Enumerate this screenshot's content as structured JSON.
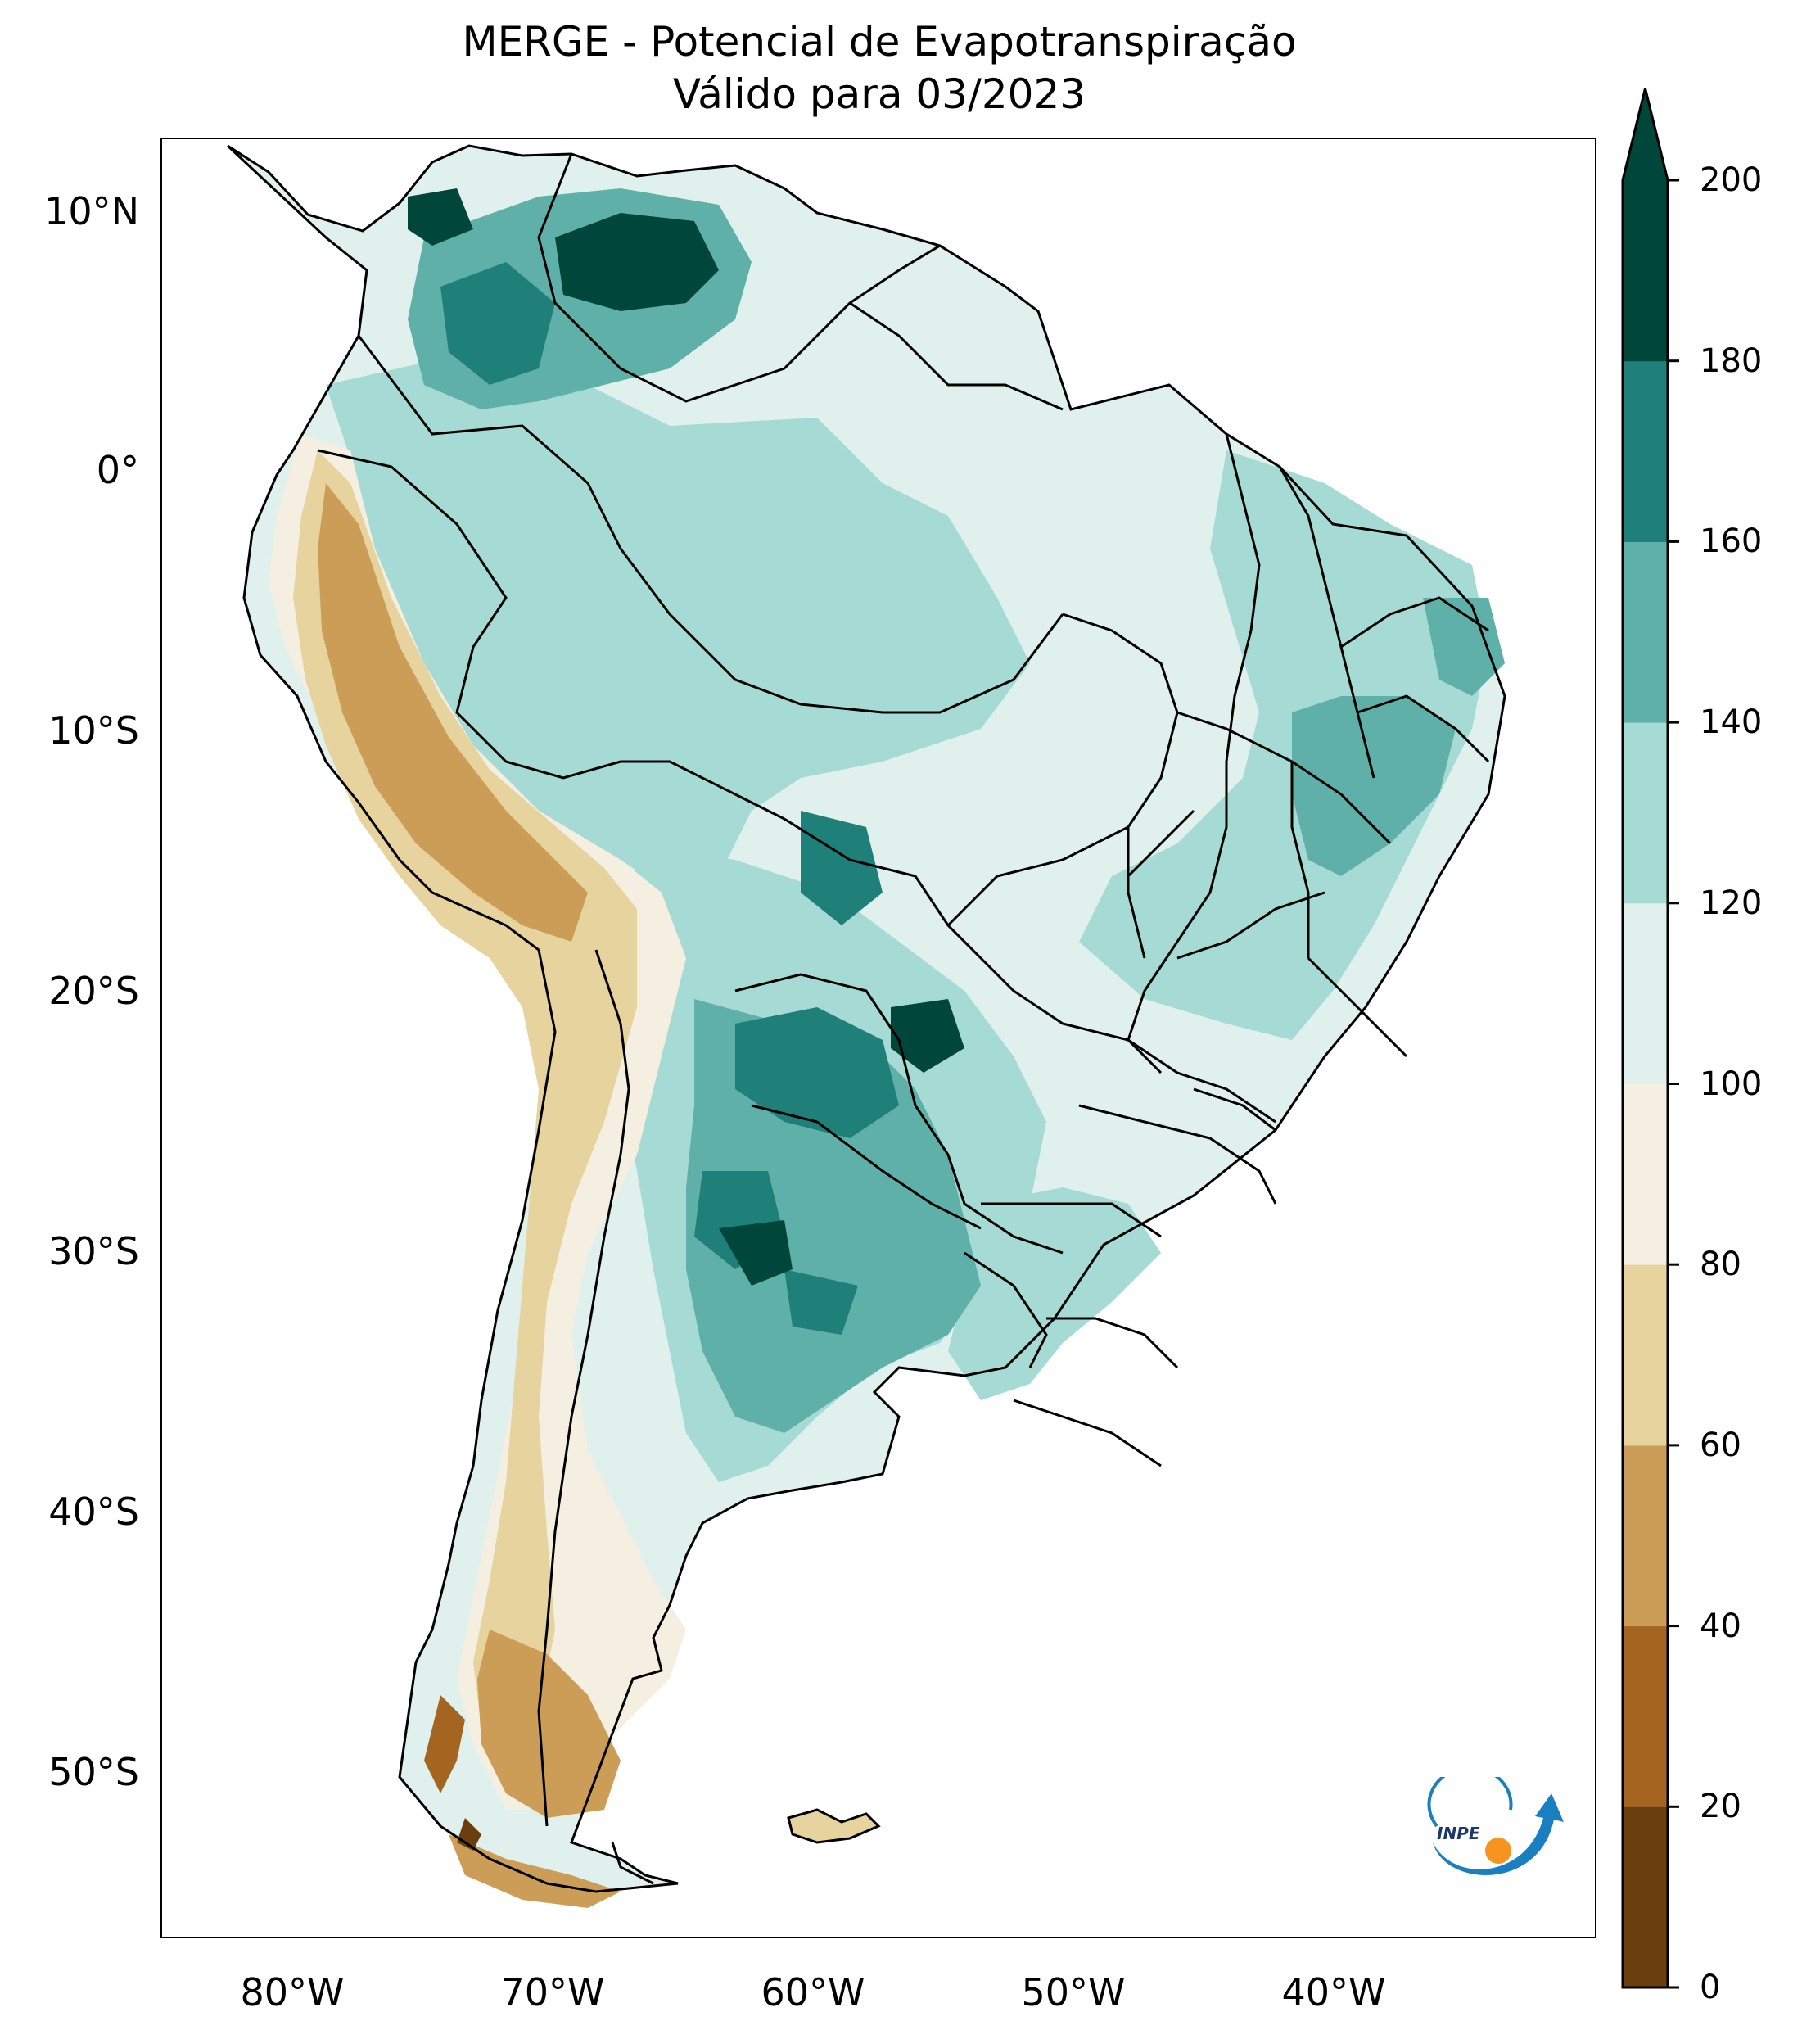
{
  "title": {
    "line1": "MERGE - Potencial de Evapotranspiração",
    "line2": "Válido para 03/2023"
  },
  "axes": {
    "lat_labels": [
      "10°N",
      "0°",
      "10°S",
      "20°S",
      "30°S",
      "40°S",
      "50°S"
    ],
    "lon_labels": [
      "80°W",
      "70°W",
      "60°W",
      "50°W",
      "40°W"
    ]
  },
  "colorbar": {
    "ticks": [
      "0",
      "20",
      "40",
      "60",
      "80",
      "100",
      "120",
      "140",
      "160",
      "180",
      "200"
    ],
    "colors": [
      "#6b3f0d",
      "#a3651f",
      "#cc9d56",
      "#e7d39e",
      "#f5efe1",
      "#dff0ed",
      "#a5dbd4",
      "#5fb0a8",
      "#1f807a",
      "#00463b"
    ],
    "extend": "max"
  },
  "logo": {
    "text": "INPE",
    "colors": {
      "ring": "#1a7fc1",
      "dot": "#f7941d"
    }
  }
}
